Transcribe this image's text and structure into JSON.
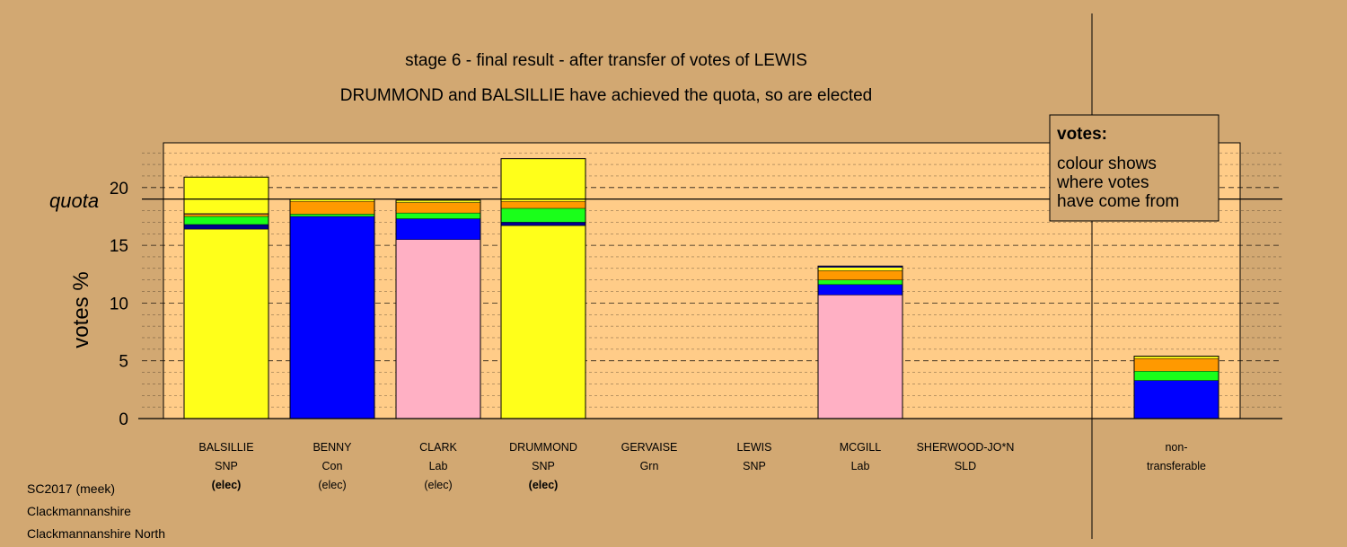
{
  "chart_data": {
    "type": "bar",
    "stacked": true,
    "title": "stage 6 - final result - after transfer of votes of LEWIS",
    "subtitle": "DRUMMOND and BALSILLIE have achieved the quota, so are elected",
    "ylabel": "votes %",
    "ylim": [
      0,
      23.5
    ],
    "yticks": [
      0,
      5,
      10,
      15,
      20
    ],
    "quota": 19,
    "quota_label": "quota",
    "grid": "dashed lines at each 1%, heavier at every 5%",
    "legend": {
      "title": "votes:",
      "lines": [
        "colour shows",
        "where votes",
        "have come from"
      ],
      "placement": "top-right"
    },
    "colors": {
      "snp": "#ffff1a",
      "con": "#0000ff",
      "grn": "#1aff1a",
      "lab": "#ffb0c4",
      "sld": "#ff9900",
      "navy": "#00008b",
      "plot_bg": "#ffcc88",
      "page_bg": "#d2a872"
    },
    "categories": [
      {
        "name": "BALSILLIE",
        "party": "SNP",
        "status": "(elec)",
        "bold": true,
        "segments": [
          {
            "c": "snp",
            "v": 16.4
          },
          {
            "c": "navy",
            "v": 0.4
          },
          {
            "c": "grn",
            "v": 0.7
          },
          {
            "c": "sld",
            "v": 0.2
          },
          {
            "c": "con",
            "v": 0.05
          },
          {
            "c": "snp",
            "v": 3.15
          }
        ]
      },
      {
        "name": "BENNY",
        "party": "Con",
        "status": "(elec)",
        "bold": false,
        "segments": [
          {
            "c": "con",
            "v": 17.5
          },
          {
            "c": "grn",
            "v": 0.2
          },
          {
            "c": "sld",
            "v": 1.1
          },
          {
            "c": "snp",
            "v": 0.2
          }
        ]
      },
      {
        "name": "CLARK",
        "party": "Lab",
        "status": "(elec)",
        "bold": false,
        "segments": [
          {
            "c": "lab",
            "v": 15.5
          },
          {
            "c": "con",
            "v": 1.8
          },
          {
            "c": "grn",
            "v": 0.5
          },
          {
            "c": "sld",
            "v": 0.9
          },
          {
            "c": "snp",
            "v": 0.2
          }
        ]
      },
      {
        "name": "DRUMMOND",
        "party": "SNP",
        "status": "(elec)",
        "bold": true,
        "segments": [
          {
            "c": "snp",
            "v": 16.7
          },
          {
            "c": "navy",
            "v": 0.3
          },
          {
            "c": "grn",
            "v": 1.2
          },
          {
            "c": "sld",
            "v": 0.6
          },
          {
            "c": "snp",
            "v": 3.7
          }
        ]
      },
      {
        "name": "GERVAISE",
        "party": "Grn",
        "status": "",
        "bold": false,
        "segments": []
      },
      {
        "name": "LEWIS",
        "party": "SNP",
        "status": "",
        "bold": false,
        "segments": []
      },
      {
        "name": "MCGILL",
        "party": "Lab",
        "status": "",
        "bold": false,
        "segments": [
          {
            "c": "lab",
            "v": 10.7
          },
          {
            "c": "con",
            "v": 0.9
          },
          {
            "c": "grn",
            "v": 0.4
          },
          {
            "c": "sld",
            "v": 0.8
          },
          {
            "c": "snp",
            "v": 0.3
          },
          {
            "c": "con",
            "v": 0.1
          }
        ]
      },
      {
        "name": "SHERWOOD-JO*N",
        "party": "SLD",
        "status": "",
        "bold": false,
        "segments": []
      },
      {
        "name": "non-",
        "party": "transferable",
        "status": "",
        "bold": false,
        "segments": [
          {
            "c": "con",
            "v": 3.3
          },
          {
            "c": "grn",
            "v": 0.8
          },
          {
            "c": "sld",
            "v": 1.1
          },
          {
            "c": "snp",
            "v": 0.2
          }
        ]
      }
    ]
  },
  "footer": {
    "line1": "SC2017 (meek)",
    "line2": "Clackmannanshire",
    "line3": "Clackmannanshire North"
  }
}
